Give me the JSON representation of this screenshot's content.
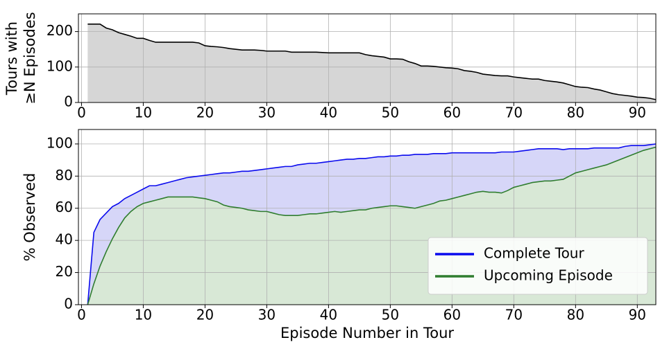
{
  "chart_data": [
    {
      "type": "area",
      "ylabel": [
        "Tours with",
        "≥N Episodes"
      ],
      "x": [
        1,
        2,
        3,
        4,
        5,
        6,
        7,
        8,
        9,
        10,
        11,
        12,
        13,
        14,
        15,
        16,
        17,
        18,
        19,
        20,
        21,
        22,
        23,
        24,
        25,
        26,
        27,
        28,
        29,
        30,
        31,
        32,
        33,
        34,
        35,
        36,
        37,
        38,
        39,
        40,
        41,
        42,
        43,
        44,
        45,
        46,
        47,
        48,
        49,
        50,
        51,
        52,
        53,
        54,
        55,
        56,
        57,
        58,
        59,
        60,
        61,
        62,
        63,
        64,
        65,
        66,
        67,
        68,
        69,
        70,
        71,
        72,
        73,
        74,
        75,
        76,
        77,
        78,
        79,
        80,
        81,
        82,
        83,
        84,
        85,
        86,
        87,
        88,
        89,
        90,
        91,
        92,
        93
      ],
      "series": [
        {
          "color": "#000000",
          "fill": "#d6d6d6",
          "values": [
            221,
            221,
            221,
            210,
            205,
            197,
            192,
            187,
            181,
            181,
            175,
            170,
            170,
            170,
            170,
            170,
            170,
            170,
            168,
            160,
            158,
            157,
            155,
            152,
            150,
            148,
            148,
            148,
            147,
            145,
            145,
            145,
            145,
            142,
            142,
            142,
            142,
            142,
            141,
            140,
            140,
            140,
            140,
            140,
            140,
            135,
            132,
            130,
            128,
            123,
            123,
            122,
            115,
            110,
            103,
            103,
            102,
            100,
            98,
            97,
            95,
            90,
            88,
            85,
            80,
            78,
            76,
            75,
            75,
            72,
            70,
            68,
            66,
            66,
            62,
            60,
            58,
            55,
            50,
            45,
            43,
            42,
            38,
            35,
            30,
            25,
            22,
            20,
            18,
            15,
            14,
            12,
            8
          ]
        }
      ],
      "xlim": [
        -0.5,
        93
      ],
      "ylim": [
        0,
        250
      ],
      "xticks": [
        0,
        10,
        20,
        30,
        40,
        50,
        60,
        70,
        80,
        90
      ],
      "yticks": [
        0,
        100,
        200
      ],
      "grid": true
    },
    {
      "type": "area",
      "ylabel": "% Observed",
      "xlabel": "Episode Number in Tour",
      "legend": "lower right",
      "x": [
        1,
        2,
        3,
        4,
        5,
        6,
        7,
        8,
        9,
        10,
        11,
        12,
        13,
        14,
        15,
        16,
        17,
        18,
        19,
        20,
        21,
        22,
        23,
        24,
        25,
        26,
        27,
        28,
        29,
        30,
        31,
        32,
        33,
        34,
        35,
        36,
        37,
        38,
        39,
        40,
        41,
        42,
        43,
        44,
        45,
        46,
        47,
        48,
        49,
        50,
        51,
        52,
        53,
        54,
        55,
        56,
        57,
        58,
        59,
        60,
        61,
        62,
        63,
        64,
        65,
        66,
        67,
        68,
        69,
        70,
        71,
        72,
        73,
        74,
        75,
        76,
        77,
        78,
        79,
        80,
        81,
        82,
        83,
        84,
        85,
        86,
        87,
        88,
        89,
        90,
        91,
        92,
        93
      ],
      "series": [
        {
          "name": "Complete Tour",
          "color": "#0a0aee",
          "fill": "#d6d6f8",
          "values": [
            0,
            45,
            53,
            57,
            61,
            63,
            66,
            68,
            70,
            72,
            74,
            74,
            75,
            76,
            77,
            78,
            79,
            79.5,
            80,
            80.5,
            81,
            81.5,
            82,
            82,
            82.5,
            83,
            83,
            83.5,
            84,
            84.5,
            85,
            85.5,
            86,
            86,
            87,
            87.5,
            88,
            88,
            88.5,
            89,
            89.5,
            90,
            90.5,
            90.5,
            91,
            91,
            91.5,
            92,
            92,
            92.5,
            92.5,
            93,
            93,
            93.5,
            93.5,
            93.5,
            94,
            94,
            94,
            94.5,
            94.5,
            94.5,
            94.5,
            94.5,
            94.5,
            94.5,
            94.5,
            95,
            95,
            95,
            95.5,
            96,
            96.5,
            97,
            97,
            97,
            97,
            96.5,
            97,
            97,
            97,
            97,
            97.5,
            97.5,
            97.5,
            97.5,
            97.5,
            98.5,
            99,
            99,
            99,
            99.5,
            100
          ]
        },
        {
          "name": "Upcoming Episode",
          "color": "#2f7d2f",
          "fill": "#d8e8d6",
          "values": [
            0,
            13,
            24,
            33,
            41,
            48,
            54,
            58,
            61,
            63,
            64,
            65,
            66,
            67,
            67,
            67,
            67,
            67,
            66.5,
            66,
            65,
            64,
            62,
            61,
            60.5,
            60,
            59,
            58.5,
            58,
            58,
            57,
            56,
            55.5,
            55.5,
            55.5,
            56,
            56.5,
            56.5,
            57,
            57.5,
            58,
            57.5,
            58,
            58.5,
            59,
            59,
            60,
            60.5,
            61,
            61.5,
            61.5,
            61,
            60.5,
            60,
            61,
            62,
            63,
            64.5,
            65,
            66,
            67,
            68,
            69,
            70,
            70.5,
            70,
            70,
            69.5,
            71,
            73,
            74,
            75,
            76,
            76.5,
            77,
            77,
            77.5,
            78,
            80,
            82,
            83,
            84,
            85,
            86,
            87,
            88.5,
            90,
            91.5,
            93,
            94.5,
            96,
            97,
            98
          ]
        }
      ],
      "xlim": [
        -0.5,
        93
      ],
      "ylim": [
        0,
        109
      ],
      "xticks": [
        0,
        10,
        20,
        30,
        40,
        50,
        60,
        70,
        80,
        90
      ],
      "yticks": [
        0,
        20,
        40,
        60,
        80,
        100
      ],
      "grid": true
    }
  ]
}
